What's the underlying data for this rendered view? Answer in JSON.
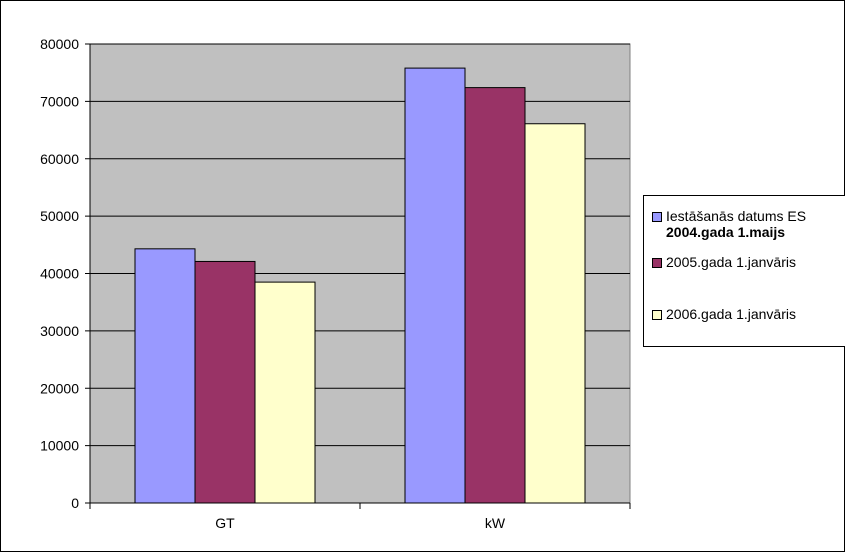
{
  "chart_data": {
    "type": "bar",
    "categories": [
      "GT",
      "kW"
    ],
    "series": [
      {
        "name": "Iestāšanās datums ES",
        "name_line2": "2004.gada 1.maijs",
        "values": [
          44300,
          75800
        ],
        "color": "#9999ff"
      },
      {
        "name": "2005.gada 1.janvāris",
        "values": [
          42100,
          72400
        ],
        "color": "#993366"
      },
      {
        "name": "2006.gada 1.janvāris",
        "values": [
          38500,
          66100
        ],
        "color": "#ffffcc"
      }
    ],
    "ylim": [
      0,
      80000
    ],
    "yticks": [
      "80000",
      "70000",
      "60000",
      "50000",
      "40000",
      "30000",
      "20000",
      "10000",
      "0"
    ],
    "ytick_values": [
      80000,
      70000,
      60000,
      50000,
      40000,
      30000,
      20000,
      10000,
      0
    ],
    "grid": true,
    "plot_background": "#c0c0c0",
    "legend_position": "right",
    "title": "",
    "xlabel": "",
    "ylabel": ""
  }
}
